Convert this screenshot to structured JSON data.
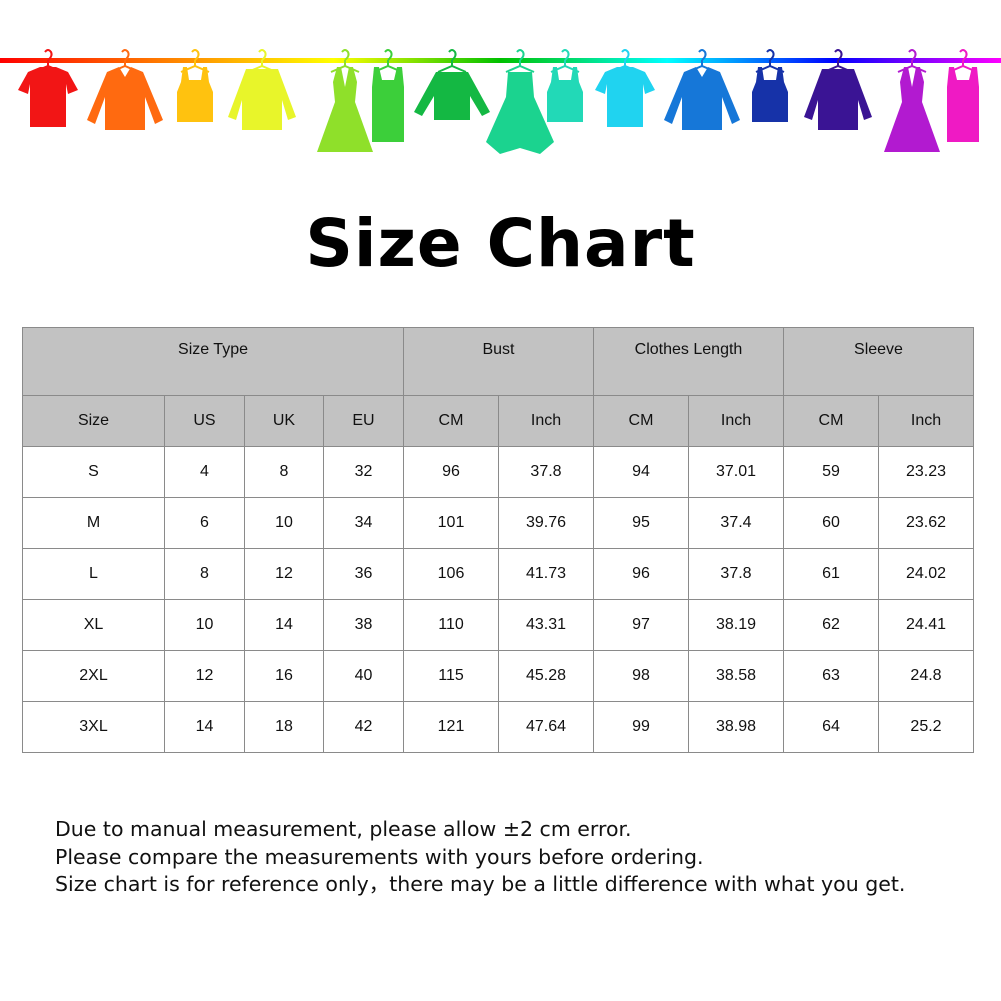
{
  "banner": {
    "rail_gradient": [
      "#ff0000",
      "#ff8000",
      "#ffff00",
      "#00c000",
      "#00ffff",
      "#0000ff",
      "#ff00ff"
    ],
    "garments": [
      {
        "icon": "tshirt-icon",
        "color": "#f21515"
      },
      {
        "icon": "shirt-icon",
        "color": "#ff6a10"
      },
      {
        "icon": "tank-top-icon",
        "color": "#ffc20f"
      },
      {
        "icon": "cardigan-icon",
        "color": "#e8f52a"
      },
      {
        "icon": "dress-icon",
        "color": "#8fe02a"
      },
      {
        "icon": "belted-dress-icon",
        "color": "#3ccf3a"
      },
      {
        "icon": "sweater-icon",
        "color": "#14b843"
      },
      {
        "icon": "gown-icon",
        "color": "#1bd38f"
      },
      {
        "icon": "tank-top-icon",
        "color": "#22d9b7"
      },
      {
        "icon": "tshirt-icon",
        "color": "#20d3f0"
      },
      {
        "icon": "shirt-icon",
        "color": "#1677d8"
      },
      {
        "icon": "tank-top-icon",
        "color": "#1632a8"
      },
      {
        "icon": "cardigan-icon",
        "color": "#3a1494"
      },
      {
        "icon": "dress-icon",
        "color": "#b21ad0"
      },
      {
        "icon": "belted-dress-icon",
        "color": "#ef1ac4"
      }
    ]
  },
  "title": "Size Chart",
  "table": {
    "group_headers": [
      "Size Type",
      "Bust",
      "Clothes Length",
      "Sleeve"
    ],
    "sub_headers": [
      "Size",
      "US",
      "UK",
      "EU",
      "CM",
      "Inch",
      "CM",
      "Inch",
      "CM",
      "Inch"
    ],
    "rows": [
      [
        "S",
        "4",
        "8",
        "32",
        "96",
        "37.8",
        "94",
        "37.01",
        "59",
        "23.23"
      ],
      [
        "M",
        "6",
        "10",
        "34",
        "101",
        "39.76",
        "95",
        "37.4",
        "60",
        "23.62"
      ],
      [
        "L",
        "8",
        "12",
        "36",
        "106",
        "41.73",
        "96",
        "37.8",
        "61",
        "24.02"
      ],
      [
        "XL",
        "10",
        "14",
        "38",
        "110",
        "43.31",
        "97",
        "38.19",
        "62",
        "24.41"
      ],
      [
        "2XL",
        "12",
        "16",
        "40",
        "115",
        "45.28",
        "98",
        "38.58",
        "63",
        "24.8"
      ],
      [
        "3XL",
        "14",
        "18",
        "42",
        "121",
        "47.64",
        "99",
        "38.98",
        "64",
        "25.2"
      ]
    ]
  },
  "notes": [
    "Due to manual measurement, please allow ±2 cm error.",
    "Please compare the measurements with yours before ordering.",
    "Size chart is for reference only，there may be a little difference with what you get."
  ]
}
